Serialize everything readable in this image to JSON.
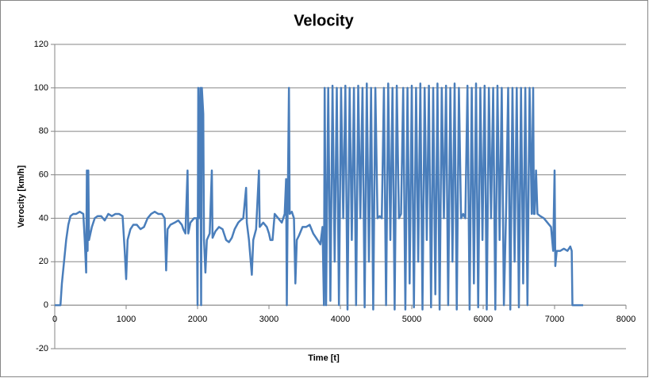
{
  "chart_data": {
    "type": "line",
    "title": "Velocity",
    "x_label": "Time [t]",
    "y_label": "Verocity [km/h]",
    "x": [
      0,
      80,
      100,
      130,
      160,
      190,
      220,
      260,
      300,
      350,
      400,
      420,
      440,
      450,
      460,
      470,
      480,
      520,
      560,
      600,
      650,
      700,
      750,
      800,
      850,
      900,
      950,
      980,
      1000,
      1020,
      1060,
      1100,
      1150,
      1200,
      1250,
      1300,
      1350,
      1400,
      1450,
      1500,
      1540,
      1560,
      1580,
      1620,
      1680,
      1730,
      1780,
      1800,
      1830,
      1860,
      1870,
      1900,
      1950,
      1990,
      2000,
      2010,
      2020,
      2040,
      2050,
      2060,
      2080,
      2090,
      2110,
      2130,
      2170,
      2200,
      2210,
      2250,
      2300,
      2350,
      2400,
      2440,
      2480,
      2520,
      2570,
      2600,
      2640,
      2680,
      2690,
      2720,
      2760,
      2780,
      2820,
      2860,
      2870,
      2920,
      2970,
      3000,
      3020,
      3050,
      3080,
      3130,
      3180,
      3220,
      3240,
      3250,
      3260,
      3280,
      3290,
      3320,
      3350,
      3370,
      3390,
      3420,
      3470,
      3520,
      3570,
      3620,
      3680,
      3720,
      3750,
      3770,
      3780,
      3800,
      3830,
      3860,
      3890,
      3920,
      3950,
      3980,
      4010,
      4040,
      4070,
      4100,
      4130,
      4160,
      4190,
      4220,
      4250,
      4280,
      4310,
      4340,
      4370,
      4400,
      4430,
      4460,
      4490,
      4520,
      4550,
      4580,
      4610,
      4640,
      4670,
      4700,
      4730,
      4760,
      4790,
      4820,
      4850,
      4880,
      4910,
      4940,
      4970,
      5000,
      5030,
      5060,
      5090,
      5120,
      5150,
      5180,
      5210,
      5240,
      5270,
      5300,
      5330,
      5360,
      5390,
      5420,
      5450,
      5480,
      5510,
      5540,
      5570,
      5600,
      5630,
      5660,
      5690,
      5720,
      5750,
      5780,
      5810,
      5840,
      5870,
      5900,
      5930,
      5960,
      5990,
      6020,
      6050,
      6080,
      6110,
      6140,
      6170,
      6200,
      6230,
      6260,
      6290,
      6320,
      6350,
      6380,
      6410,
      6440,
      6470,
      6500,
      6530,
      6560,
      6590,
      6620,
      6650,
      6680,
      6700,
      6710,
      6720,
      6740,
      6760,
      6800,
      6850,
      6900,
      6950,
      6980,
      7000,
      7010,
      7030,
      7080,
      7130,
      7180,
      7220,
      7240,
      7250,
      7300,
      7400
    ],
    "series": [
      {
        "name": "Velocity",
        "color": "#4a7ebb",
        "values": [
          0,
          0,
          10,
          20,
          30,
          37,
          41,
          42,
          42,
          43,
          42,
          30,
          15,
          62,
          25,
          62,
          30,
          36,
          40,
          41,
          41,
          39,
          42,
          41,
          42,
          42,
          41,
          25,
          12,
          30,
          35,
          37,
          37,
          35,
          36,
          40,
          42,
          43,
          42,
          42,
          40,
          16,
          35,
          37,
          38,
          39,
          37,
          35,
          33,
          62,
          33,
          38,
          40,
          40,
          0,
          100,
          40,
          100,
          0,
          100,
          88,
          30,
          15,
          30,
          33,
          62,
          31,
          34,
          36,
          35,
          30,
          29,
          31,
          35,
          38,
          39,
          40,
          54,
          38,
          30,
          14,
          30,
          35,
          62,
          36,
          38,
          36,
          33,
          30,
          30,
          42,
          40,
          38,
          42,
          58,
          0,
          38,
          100,
          42,
          43,
          40,
          10,
          30,
          32,
          36,
          36,
          37,
          33,
          30,
          28,
          36,
          0,
          100,
          0,
          100,
          2,
          101,
          20,
          100,
          0,
          100,
          40,
          101,
          -2,
          100,
          30,
          100,
          0,
          101,
          40,
          100,
          -1,
          102,
          20,
          100,
          -2,
          100,
          40,
          41,
          40,
          100,
          0,
          102,
          30,
          100,
          -2,
          101,
          40,
          42,
          100,
          -2,
          100,
          10,
          101,
          -1,
          100,
          20,
          102,
          -2,
          100,
          30,
          101,
          -1,
          100,
          5,
          102,
          -2,
          100,
          40,
          101,
          0,
          100,
          20,
          102,
          -2,
          100,
          40,
          42,
          40,
          101,
          -2,
          100,
          10,
          102,
          -1,
          100,
          30,
          101,
          -2,
          100,
          40,
          100,
          -2,
          101,
          30,
          100,
          0,
          42,
          100,
          -2,
          100,
          20,
          100,
          -1,
          100,
          10,
          100,
          0,
          100,
          42,
          100,
          42,
          42,
          62,
          42,
          41,
          40,
          38,
          36,
          25,
          62,
          18,
          25,
          25,
          26,
          25,
          27,
          25,
          0,
          0,
          0
        ]
      }
    ],
    "xlim": [
      0,
      8000
    ],
    "xticks": [
      0,
      1000,
      2000,
      3000,
      4000,
      5000,
      6000,
      7000,
      8000
    ],
    "ylim": [
      -20,
      120
    ],
    "yticks": [
      -20,
      0,
      20,
      40,
      60,
      80,
      100,
      120
    ],
    "grid": true
  }
}
